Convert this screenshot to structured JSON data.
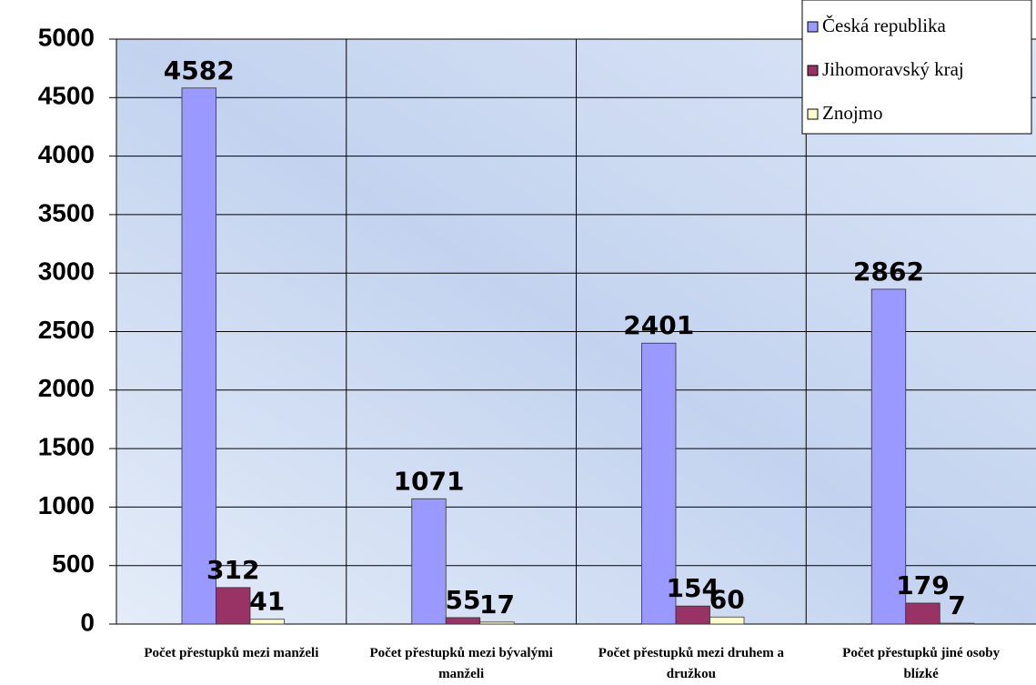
{
  "chart_data": {
    "type": "bar",
    "categories": [
      "Počet přestupků mezi manželi",
      "Počet přestupků mezi bývalými manželi",
      "Počet přestupků mezi druhem a družkou",
      "Počet přestupků jiné osoby blízké"
    ],
    "series": [
      {
        "name": "Česká republika",
        "color": "#9999ff",
        "values": [
          4582,
          1071,
          2401,
          2862
        ]
      },
      {
        "name": "Jihomoravský kraj",
        "color": "#993366",
        "values": [
          312,
          55,
          154,
          179
        ]
      },
      {
        "name": "Znojmo",
        "color": "#ffffcc",
        "values": [
          41,
          17,
          60,
          7
        ]
      }
    ],
    "ylim": [
      0,
      5000
    ],
    "yticks": [
      0,
      500,
      1000,
      1500,
      2000,
      2500,
      3000,
      3500,
      4000,
      4500,
      5000
    ],
    "grid": true,
    "legend": "top-right"
  }
}
